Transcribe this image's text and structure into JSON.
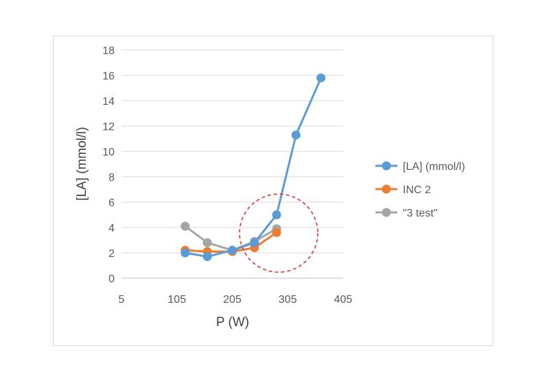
{
  "chart_data": {
    "type": "line",
    "title": "",
    "xlabel": "P (W)",
    "ylabel": "[LA] (mmol/l)",
    "xlim": [
      5,
      405
    ],
    "ylim": [
      0,
      18
    ],
    "x_ticks": [
      5,
      105,
      205,
      305,
      405
    ],
    "y_ticks": [
      0,
      2,
      4,
      6,
      8,
      10,
      12,
      14,
      16,
      18
    ],
    "grid": "horizontal",
    "legend_position": "right",
    "series": [
      {
        "name": "[LA] (mmol/l)",
        "color": "#5b9bd5",
        "points": [
          [
            120,
            2.0
          ],
          [
            160,
            1.7
          ],
          [
            205,
            2.2
          ],
          [
            245,
            2.8
          ],
          [
            285,
            5.0
          ],
          [
            320,
            11.3
          ],
          [
            365,
            15.8
          ]
        ]
      },
      {
        "name": "INC 2",
        "color": "#ed7d31",
        "points": [
          [
            120,
            2.2
          ],
          [
            160,
            2.1
          ],
          [
            205,
            2.1
          ],
          [
            245,
            2.4
          ],
          [
            285,
            3.6
          ]
        ]
      },
      {
        "name": "\"3 test\"",
        "color": "#a5a5a5",
        "points": [
          [
            120,
            4.1
          ],
          [
            160,
            2.8
          ],
          [
            205,
            2.2
          ],
          [
            245,
            2.9
          ],
          [
            285,
            3.9
          ]
        ]
      }
    ],
    "annotation": {
      "type": "dashed-circle",
      "color": "#e03030",
      "center": [
        285,
        3.5
      ],
      "note": "red dashed circle highlighting the region where curves diverge"
    }
  }
}
